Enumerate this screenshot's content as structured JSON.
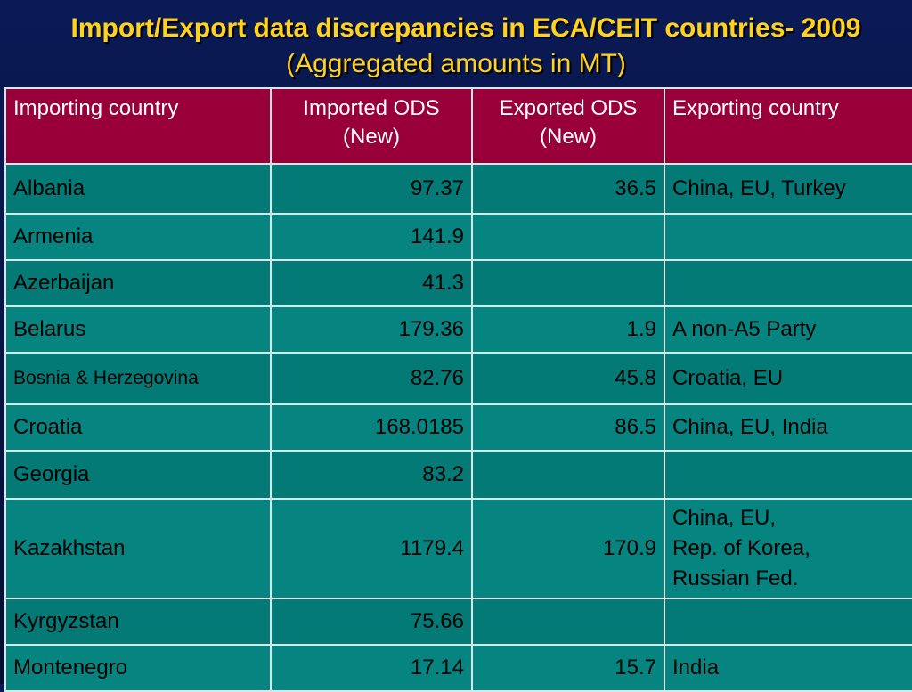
{
  "title": {
    "line1": "Import/Export data discrepancies in ECA/CEIT countries- 2009",
    "line2": "(Aggregated amounts in MT)"
  },
  "table": {
    "headers": {
      "importing_country": "Importing country",
      "imported_ods": "Imported ODS",
      "imported_ods_sub": "(New)",
      "exported_ods": "Exported ODS",
      "exported_ods_sub": "(New)",
      "exporting_country": "Exporting country"
    },
    "rows": [
      {
        "country": "Albania",
        "imported": "97.37",
        "exported": "36.5",
        "exporting": [
          "China, EU, Turkey"
        ]
      },
      {
        "country": "Armenia",
        "imported": "141.9",
        "exported": "",
        "exporting": []
      },
      {
        "country": "Azerbaijan",
        "imported": "41.3",
        "exported": "",
        "exporting": []
      },
      {
        "country": "Belarus",
        "imported": "179.36",
        "exported": "1.9",
        "exporting": [
          "A non-A5 Party"
        ]
      },
      {
        "country": "Bosnia & Herzegovina",
        "imported": "82.76",
        "exported": "45.8",
        "exporting": [
          "Croatia, EU"
        ]
      },
      {
        "country": "Croatia",
        "imported": "168.0185",
        "exported": "86.5",
        "exporting": [
          "China, EU, India"
        ]
      },
      {
        "country": "Georgia",
        "imported": "83.2",
        "exported": "",
        "exporting": []
      },
      {
        "country": "Kazakhstan",
        "imported": "1179.4",
        "exported": "170.9",
        "exporting": [
          "China, EU,",
          "Rep. of Korea,",
          "Russian Fed."
        ]
      },
      {
        "country": "Kyrgyzstan",
        "imported": "75.66",
        "exported": "",
        "exporting": []
      },
      {
        "country": "Montenegro",
        "imported": "17.14",
        "exported": "15.7",
        "exporting": [
          "India"
        ]
      }
    ]
  }
}
